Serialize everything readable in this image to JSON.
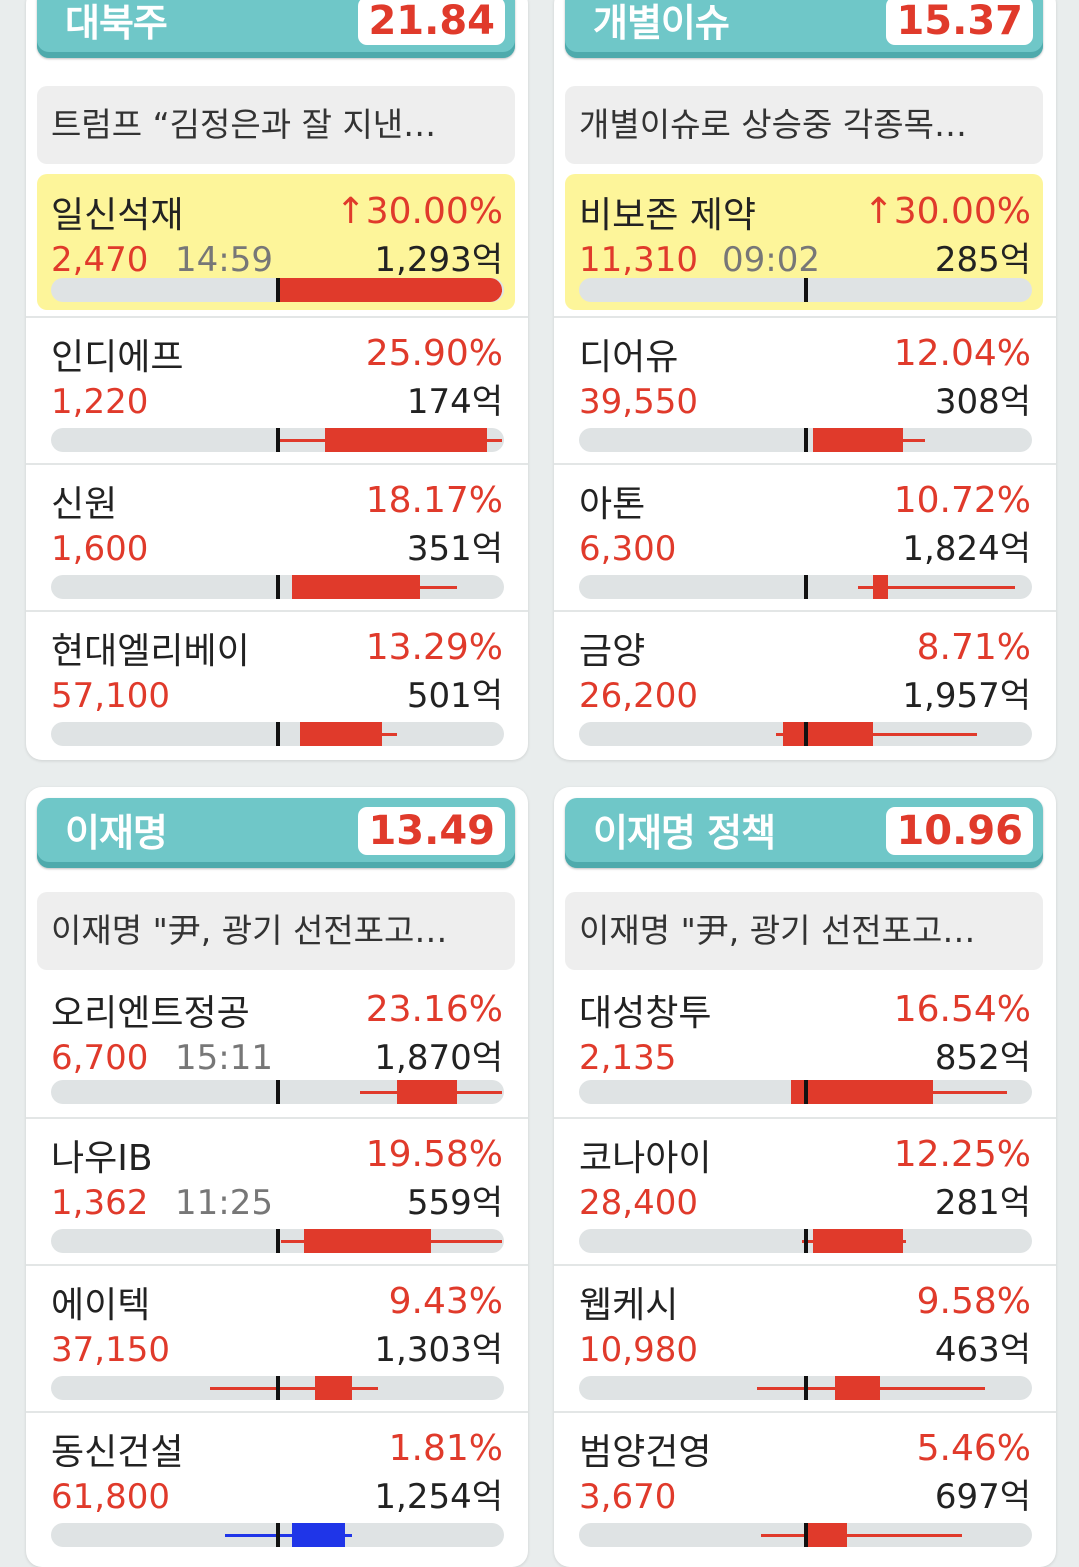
{
  "colors": {
    "up": "#e03a2b",
    "down": "#1f35e8",
    "theme": "#6fc7c8",
    "highlight": "#fdf59a"
  },
  "themes": [
    {
      "name": "대북주",
      "score": "21.84",
      "news": "트럼프 “김정은과 잘 지낸…",
      "stocks": [
        {
          "name": "일신석재",
          "rate": "↑30.00%",
          "price": "2,470",
          "time": "14:59",
          "volume": "1,293억",
          "highlight": true,
          "dir": "up",
          "candle": {
            "low": 0.0,
            "open": 0.0,
            "close": 30.0,
            "high": 30.0
          }
        },
        {
          "name": "인디에프",
          "rate": "25.90%",
          "price": "1,220",
          "time": "",
          "volume": "174억",
          "dir": "up",
          "candle": {
            "low": 0.0,
            "open": 6.3,
            "close": 28.0,
            "high": 30.0
          }
        },
        {
          "name": "신원",
          "rate": "18.17%",
          "price": "1,600",
          "time": "",
          "volume": "351억",
          "dir": "up",
          "candle": {
            "low": 2.0,
            "open": 2.0,
            "close": 19.0,
            "high": 24.0
          }
        },
        {
          "name": "현대엘리베이",
          "rate": "13.29%",
          "price": "57,100",
          "time": "",
          "volume": "501억",
          "dir": "up",
          "candle": {
            "low": 3.0,
            "open": 3.0,
            "close": 14.0,
            "high": 16.0
          }
        }
      ]
    },
    {
      "name": "개별이슈",
      "score": "15.37",
      "news": "개별이슈로 상승중 각종목…",
      "stocks": [
        {
          "name": "비보존 제약",
          "rate": "↑30.00%",
          "price": "11,310",
          "time": "09:02",
          "volume": "285억",
          "highlight": true,
          "dir": "up",
          "candle": null
        },
        {
          "name": "디어유",
          "rate": "12.04%",
          "price": "39,550",
          "time": "",
          "volume": "308억",
          "dir": "up",
          "candle": {
            "low": 1.0,
            "open": 1.0,
            "close": 13.0,
            "high": 16.0
          }
        },
        {
          "name": "아톤",
          "rate": "10.72%",
          "price": "6,300",
          "time": "",
          "volume": "1,824억",
          "dir": "up",
          "candle": {
            "low": 7.0,
            "open": 9.0,
            "close": 11.0,
            "high": 28.0
          }
        },
        {
          "name": "금양",
          "rate": "8.71%",
          "price": "26,200",
          "time": "",
          "volume": "1,957억",
          "dir": "up",
          "candle": {
            "low": -4.0,
            "open": -3.0,
            "close": 9.0,
            "high": 23.0
          }
        }
      ]
    },
    {
      "name": "이재명",
      "score": "13.49",
      "news": "이재명 \"尹, 광기 선전포고…",
      "stocks": [
        {
          "name": "오리엔트정공",
          "rate": "23.16%",
          "price": "6,700",
          "time": "15:11",
          "volume": "1,870억",
          "dir": "up",
          "candle": {
            "low": 11.0,
            "open": 16.0,
            "close": 24.0,
            "high": 30.0
          }
        },
        {
          "name": "나우IB",
          "rate": "19.58%",
          "price": "1,362",
          "time": "11:25",
          "volume": "559억",
          "dir": "up",
          "candle": {
            "low": 0.5,
            "open": 3.6,
            "close": 20.5,
            "high": 30.0
          }
        },
        {
          "name": "에이텍",
          "rate": "9.43%",
          "price": "37,150",
          "time": "",
          "volume": "1,303억",
          "dir": "up",
          "candle": {
            "low": -9.0,
            "open": 5.0,
            "close": 10.0,
            "high": 13.5
          }
        },
        {
          "name": "동신건설",
          "rate": "1.81%",
          "price": "61,800",
          "time": "",
          "volume": "1,254억",
          "dir": "down",
          "candle": {
            "low": -7.0,
            "open": 9.0,
            "close": 2.0,
            "high": 10.0
          }
        }
      ]
    },
    {
      "name": "이재명 정책",
      "score": "10.96",
      "news": "이재명 \"尹, 광기 선전포고…",
      "stocks": [
        {
          "name": "대성창투",
          "rate": "16.54%",
          "price": "2,135",
          "time": "",
          "volume": "852억",
          "dir": "up",
          "candle": {
            "low": -2.0,
            "open": -2.0,
            "close": 17.0,
            "high": 27.0
          }
        },
        {
          "name": "코나아이",
          "rate": "12.25%",
          "price": "28,400",
          "time": "",
          "volume": "281억",
          "dir": "up",
          "candle": {
            "low": -0.5,
            "open": 1.0,
            "close": 13.0,
            "high": 13.5
          }
        },
        {
          "name": "웹케시",
          "rate": "9.58%",
          "price": "10,980",
          "time": "",
          "volume": "463억",
          "dir": "up",
          "candle": {
            "low": -6.5,
            "open": 3.9,
            "close": 10.0,
            "high": 24.0
          }
        },
        {
          "name": "범양건영",
          "rate": "5.46%",
          "price": "3,670",
          "time": "",
          "volume": "697억",
          "dir": "up",
          "candle": {
            "low": -6.0,
            "open": 0.3,
            "close": 5.5,
            "high": 21.0
          }
        }
      ]
    }
  ]
}
